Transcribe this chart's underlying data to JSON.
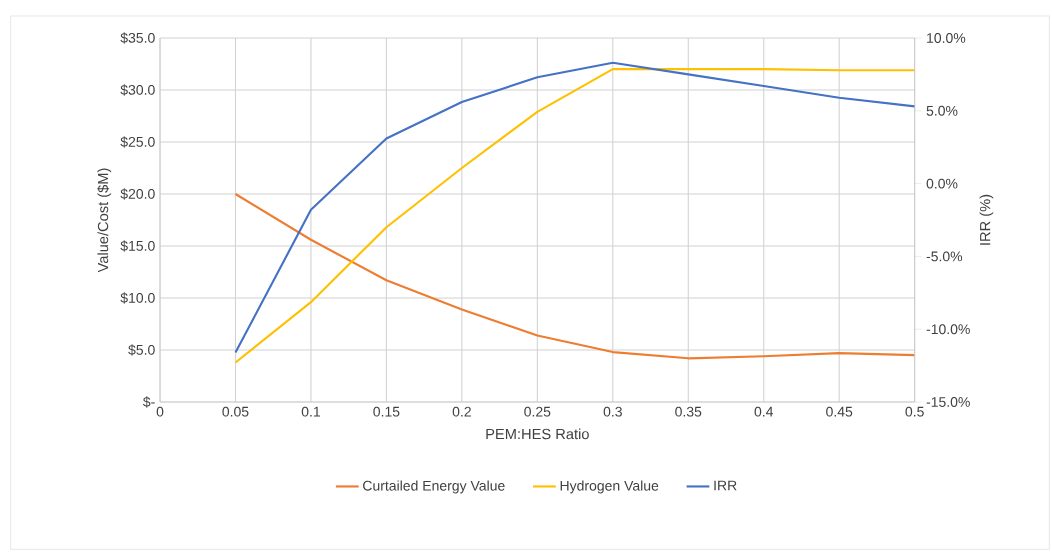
{
  "chart_data": {
    "type": "line",
    "categories": [
      "0",
      "0.05",
      "0.1",
      "0.15",
      "0.2",
      "0.25",
      "0.3",
      "0.35",
      "0.4",
      "0.45",
      "0.5"
    ],
    "xlabel": "PEM:HES Ratio",
    "ylabel": "Value/Cost ($M)",
    "y2label": "IRR (%)",
    "series": [
      {
        "name": "Curtailed Energy Value",
        "color": "#ed7d31",
        "values": [
          null,
          20.0,
          15.6,
          11.7,
          8.9,
          6.4,
          4.8,
          4.2,
          4.4,
          4.7,
          4.5
        ]
      },
      {
        "name": "Hydrogen Value",
        "color": "#ffc000",
        "values": [
          null,
          3.8,
          9.6,
          16.8,
          22.5,
          27.9,
          32.0,
          32.0,
          32.0,
          31.9,
          31.9
        ]
      },
      {
        "name": "IRR",
        "color": "#4472c4",
        "axis": "y2",
        "values": [
          null,
          -11.6,
          -1.8,
          3.1,
          5.6,
          7.3,
          8.3,
          7.5,
          6.7,
          5.9,
          5.3
        ]
      }
    ],
    "ylim": [
      0,
      35
    ],
    "yticks": [
      {
        "value": 0,
        "label": "$-"
      },
      {
        "value": 5,
        "label": "$5.0"
      },
      {
        "value": 10,
        "label": "$10.0"
      },
      {
        "value": 15,
        "label": "$15.0"
      },
      {
        "value": 20,
        "label": "$20.0"
      },
      {
        "value": 25,
        "label": "$25.0"
      },
      {
        "value": 30,
        "label": "$30.0"
      },
      {
        "value": 35,
        "label": "$35.0"
      }
    ],
    "y2lim": [
      -15,
      10
    ],
    "y2ticks": [
      {
        "value": -15,
        "label": "-15.0%"
      },
      {
        "value": -10,
        "label": "-10.0%"
      },
      {
        "value": -5,
        "label": "-5.0%"
      },
      {
        "value": 0,
        "label": "0.0%"
      },
      {
        "value": 5,
        "label": "5.0%"
      },
      {
        "value": 10,
        "label": "10.0%"
      }
    ],
    "grid": true,
    "legend": "bottom"
  }
}
